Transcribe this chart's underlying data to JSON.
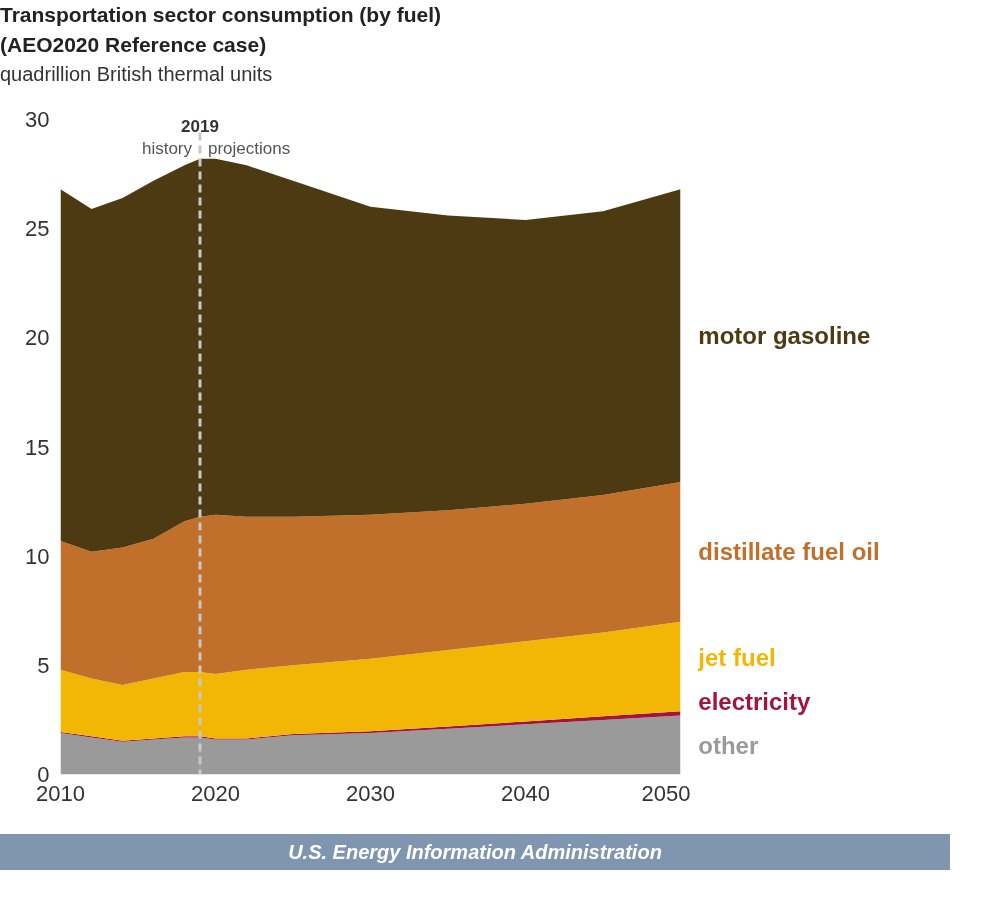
{
  "chart_data": {
    "type": "area",
    "stacked": true,
    "title": "Transportation sector consumption (by fuel)\n(AEO2020 Reference case)",
    "subtitle": "quadrillion British thermal units",
    "x": [
      2010,
      2012,
      2014,
      2016,
      2018,
      2019,
      2020,
      2022,
      2025,
      2030,
      2035,
      2040,
      2045,
      2050
    ],
    "series": [
      {
        "name": "other",
        "color": "#9a9a9a",
        "values": [
          1.9,
          1.7,
          1.5,
          1.6,
          1.7,
          1.7,
          1.6,
          1.6,
          1.8,
          1.9,
          2.1,
          2.3,
          2.5,
          2.7
        ]
      },
      {
        "name": "electricity",
        "color": "#a3133a",
        "values": [
          0.05,
          0.05,
          0.05,
          0.05,
          0.05,
          0.05,
          0.05,
          0.05,
          0.06,
          0.08,
          0.1,
          0.13,
          0.17,
          0.2
        ]
      },
      {
        "name": "jet fuel",
        "color": "#f2b705",
        "values": [
          2.85,
          2.65,
          2.55,
          2.75,
          2.95,
          2.95,
          2.95,
          3.15,
          3.14,
          3.32,
          3.5,
          3.67,
          3.83,
          4.1
        ]
      },
      {
        "name": "distillate fuel oil",
        "color": "#c0702a",
        "values": [
          5.9,
          5.8,
          6.3,
          6.4,
          6.9,
          7.1,
          7.3,
          7.0,
          6.8,
          6.6,
          6.4,
          6.3,
          6.3,
          6.4
        ]
      },
      {
        "name": "motor gasoline",
        "color": "#4d3a12",
        "values": [
          16.1,
          15.7,
          16.0,
          16.4,
          16.3,
          16.4,
          16.3,
          16.1,
          15.4,
          14.1,
          13.5,
          13.0,
          13.0,
          13.4
        ]
      }
    ],
    "xlim": [
      2010,
      2050
    ],
    "xticks": [
      2010,
      2020,
      2030,
      2040,
      2050
    ],
    "ylim": [
      0,
      30
    ],
    "yticks": [
      0,
      5,
      10,
      15,
      20,
      25,
      30
    ],
    "ref_lines": [
      {
        "axis": "x",
        "value": 2019,
        "label": "2019",
        "color": "#c8c8c8",
        "line_style": "dashed"
      }
    ],
    "annotations": [
      "history",
      "projections",
      "U.S. Energy Information Administration"
    ],
    "grid": false
  }
}
